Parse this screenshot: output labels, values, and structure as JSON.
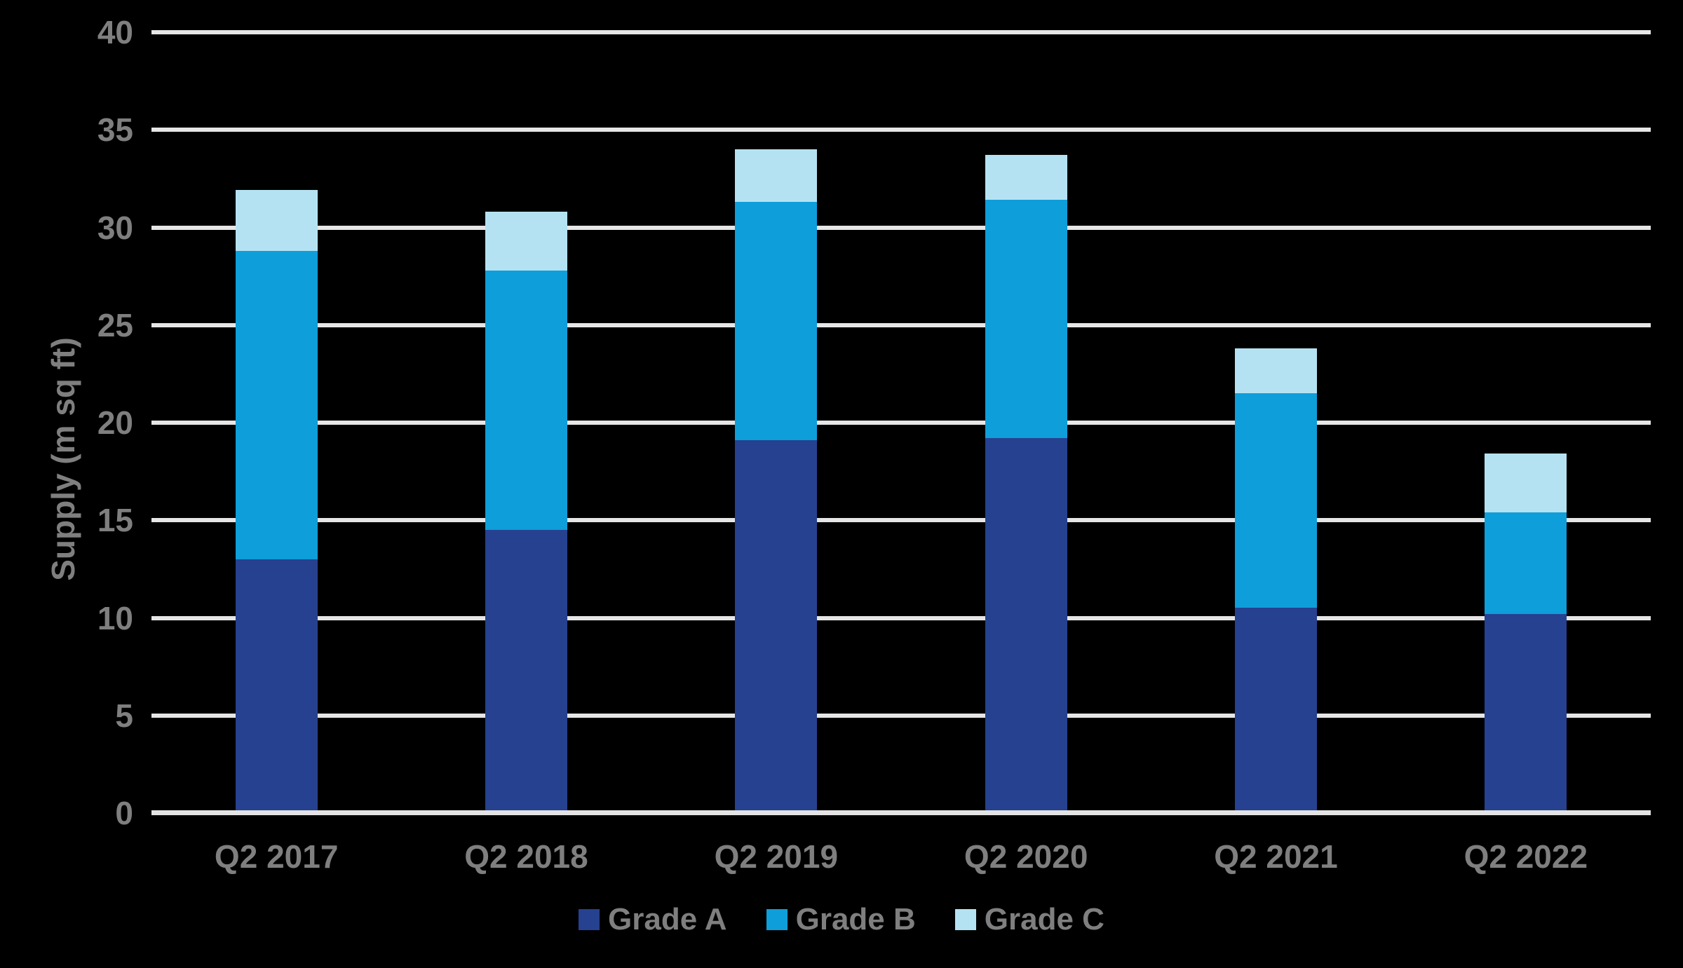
{
  "chart_data": {
    "type": "bar",
    "stacked": true,
    "title": "",
    "xlabel": "",
    "ylabel": "Supply (m sq ft)",
    "categories": [
      "Q2 2017",
      "Q2 2018",
      "Q2 2019",
      "Q2 2020",
      "Q2 2021",
      "Q2 2022"
    ],
    "series": [
      {
        "name": "Grade A",
        "color": "#26418F",
        "values": [
          12.9,
          14.4,
          19.0,
          19.1,
          10.4,
          10.1
        ]
      },
      {
        "name": "Grade B",
        "color": "#0E9EDA",
        "values": [
          15.8,
          13.3,
          12.2,
          12.2,
          11.0,
          5.2
        ]
      },
      {
        "name": "Grade C",
        "color": "#B5E2F2",
        "values": [
          3.1,
          3.0,
          2.7,
          2.3,
          2.3,
          3.0
        ]
      }
    ],
    "totals": [
      31.8,
      30.7,
      33.9,
      33.6,
      23.7,
      18.3
    ],
    "ylim": [
      0,
      40
    ],
    "ytick_step": 5,
    "yticks": [
      0,
      5,
      10,
      15,
      20,
      25,
      30,
      35,
      40
    ],
    "grid": true,
    "legend_position": "bottom"
  },
  "styles": {
    "background": "#000000",
    "label_gray": "#7F7F7F",
    "gridline_color": "#E6E6E6",
    "baseline_color": "#E3E3E3",
    "grade_a_color": "#26418F",
    "grade_b_color": "#0E9EDA",
    "grade_c_color": "#B5E2F2"
  }
}
